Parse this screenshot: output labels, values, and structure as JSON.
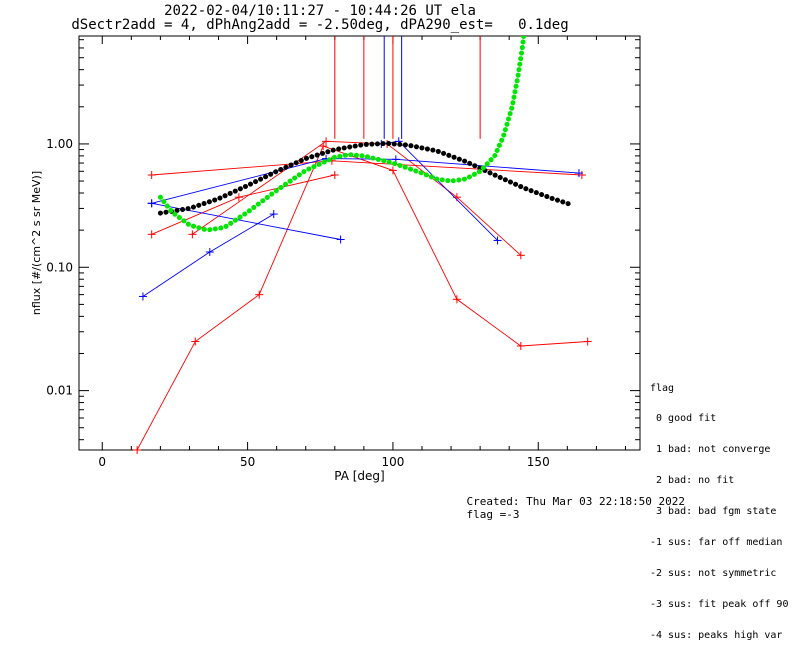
{
  "header": {
    "line1": "2022-02-04/10:11:27 - 10:44:26 UT ela",
    "line2": "dSectr2add = 4, dPhAng2add = -2.50deg, dPA290_est=   0.1deg"
  },
  "flag_legend": {
    "title": "flag",
    "items": [
      " 0 good fit",
      " 1 bad: not converge",
      " 2 bad: no fit",
      " 3 bad: bad fgm state",
      "-1 sus: far off median",
      "-2 sus: not symmetric",
      "-3 sus: fit peak off 90",
      "-4 sus: peaks high var"
    ]
  },
  "footer": {
    "created": "Created: Thu Mar 03 22:18:50 2022",
    "flag": "flag =-3"
  },
  "colors": {
    "red": "#ff0000",
    "blue": "#0000ff",
    "green": "#00e600",
    "black": "#000000"
  },
  "chart_data": {
    "type": "line",
    "xlabel": "PA [deg]",
    "ylabel": "nflux [#/(cm^2 s sr MeV)]",
    "xlim": [
      -8,
      185
    ],
    "ylim": [
      0.0033,
      7.5
    ],
    "yscale": "log",
    "xticks": [
      0,
      50,
      100,
      150
    ],
    "xtick_labels": [
      "0",
      "50",
      "100",
      "150"
    ],
    "yticks": [
      0.01,
      0.1,
      1.0
    ],
    "ytick_labels": [
      "0.01",
      "0.10",
      "1.00"
    ],
    "series": [
      {
        "color": "red",
        "points": [
          [
            17,
            0.56
          ],
          [
            79,
            0.73
          ],
          [
            165,
            0.56
          ]
        ]
      },
      {
        "color": "red",
        "points": [
          [
            17,
            0.185
          ],
          [
            47,
            0.37
          ],
          [
            80,
            0.56
          ]
        ]
      },
      {
        "color": "red",
        "points": [
          [
            31,
            0.185
          ],
          [
            77,
            1.05
          ],
          [
            98,
            1.0
          ],
          [
            122,
            0.37
          ],
          [
            144,
            0.125
          ]
        ]
      },
      {
        "color": "red",
        "points": [
          [
            12,
            0.0033
          ],
          [
            32,
            0.025
          ],
          [
            54,
            0.06
          ],
          [
            76,
            0.96
          ],
          [
            100,
            0.61
          ],
          [
            122,
            0.055
          ],
          [
            144,
            0.023
          ],
          [
            167,
            0.025
          ]
        ]
      },
      {
        "color": "blue",
        "points": [
          [
            17,
            0.33
          ],
          [
            77,
            0.76
          ],
          [
            101,
            0.75
          ],
          [
            164,
            0.58
          ]
        ]
      },
      {
        "color": "blue",
        "points": [
          [
            17,
            0.33
          ],
          [
            82,
            0.168
          ]
        ]
      },
      {
        "color": "blue",
        "points": [
          [
            14,
            0.058
          ],
          [
            37,
            0.133
          ],
          [
            59,
            0.27
          ]
        ]
      },
      {
        "color": "blue",
        "points": [
          [
            96,
            1.0
          ],
          [
            102,
            1.05
          ],
          [
            136,
            0.165
          ]
        ]
      },
      {
        "color": "black",
        "style": "dots",
        "points": [
          [
            20,
            0.275
          ],
          [
            30,
            0.3
          ],
          [
            40,
            0.36
          ],
          [
            50,
            0.46
          ],
          [
            60,
            0.6
          ],
          [
            70,
            0.76
          ],
          [
            80,
            0.9
          ],
          [
            90,
            0.99
          ],
          [
            98,
            1.01
          ],
          [
            105,
            0.98
          ],
          [
            115,
            0.88
          ],
          [
            125,
            0.72
          ],
          [
            135,
            0.56
          ],
          [
            145,
            0.44
          ],
          [
            155,
            0.36
          ],
          [
            160,
            0.33
          ],
          [
            162,
            0.315
          ]
        ]
      },
      {
        "color": "green",
        "style": "dots",
        "points": [
          [
            20,
            0.37
          ],
          [
            24,
            0.28
          ],
          [
            30,
            0.22
          ],
          [
            36,
            0.2
          ],
          [
            42,
            0.21
          ],
          [
            50,
            0.28
          ],
          [
            60,
            0.42
          ],
          [
            70,
            0.61
          ],
          [
            80,
            0.78
          ],
          [
            85,
            0.82
          ],
          [
            90,
            0.8
          ],
          [
            100,
            0.7
          ],
          [
            110,
            0.58
          ],
          [
            115,
            0.52
          ],
          [
            120,
            0.5
          ],
          [
            125,
            0.52
          ],
          [
            130,
            0.6
          ],
          [
            135,
            0.8
          ],
          [
            138,
            1.15
          ],
          [
            141,
            2.0
          ],
          [
            143,
            3.5
          ],
          [
            144.5,
            6.0
          ],
          [
            145,
            7.5
          ]
        ]
      }
    ],
    "vlines": [
      {
        "color": "red",
        "x": 80
      },
      {
        "color": "red",
        "x": 90
      },
      {
        "color": "blue",
        "x": 97
      },
      {
        "color": "red",
        "x": 100
      },
      {
        "color": "blue",
        "x": 103
      },
      {
        "color": "red",
        "x": 130
      }
    ]
  }
}
